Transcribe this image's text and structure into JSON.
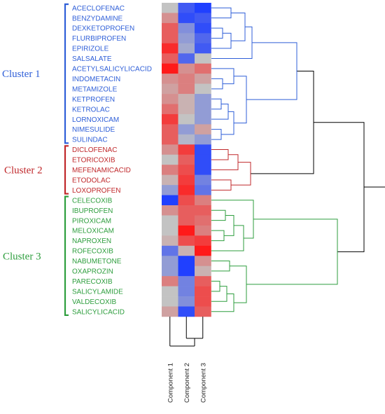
{
  "colors": {
    "cluster_1": "#2f5fd8",
    "cluster_2": "#c0282b",
    "cluster_3": "#2e9e3e",
    "heat_low": "#2040ff",
    "heat_mid": "#c3c3c3",
    "heat_high": "#ff1a1a",
    "root_link": "#000000"
  },
  "clusters": [
    {
      "label": "Cluster 1",
      "color": "#2f5fd8",
      "drugs": [
        "ACECLOFENAC",
        "BENZYDAMINE",
        "DEXKETOPROFEN",
        "FLURBIPROFEN",
        "EPIRIZOLE",
        "SALSALATE",
        "ACETYLSALICYLICACID",
        "INDOMETACIN",
        "METAMIZOLE",
        "KETPROFEN",
        "KETROLAC",
        "LORNOXICAM",
        "NIMESULIDE",
        "SULINDAC"
      ]
    },
    {
      "label": "Cluster 2",
      "color": "#c0282b",
      "drugs": [
        "DICLOFENAC",
        "ETORICOXIB",
        "MEFENAMICACID",
        "ETODOLAC",
        "LOXOPROFEN"
      ]
    },
    {
      "label": "Cluster 3",
      "color": "#2e9e3e",
      "drugs": [
        "CELECOXIB",
        "IBUPROFEN",
        "PIROXICAM",
        "MELOXICAM",
        "NAPROXEN",
        "ROFECOXIB",
        "NABUMETONE",
        "OXAPROZIN",
        "PARECOXIB",
        "SALICYLAMIDE",
        "VALDECOXIB",
        "SALICYLICACID"
      ]
    }
  ],
  "components": [
    "Component 1",
    "Component 2",
    "Component 3"
  ],
  "chart_data": {
    "type": "heatmap",
    "rows": [
      "ACECLOFENAC",
      "BENZYDAMINE",
      "DEXKETOPROFEN",
      "FLURBIPROFEN",
      "EPIRIZOLE",
      "SALSALATE",
      "ACETYLSALICYLICACID",
      "INDOMETACIN",
      "METAMIZOLE",
      "KETPROFEN",
      "KETROLAC",
      "LORNOXICAM",
      "NIMESULIDE",
      "SULINDAC",
      "DICLOFENAC",
      "ETORICOXIB",
      "MEFENAMICACID",
      "ETODOLAC",
      "LOXOPROFEN",
      "CELECOXIB",
      "IBUPROFEN",
      "PIROXICAM",
      "MELOXICAM",
      "NAPROXEN",
      "ROFECOXIB",
      "NABUMETONE",
      "OXAPROZIN",
      "PARECOXIB",
      "SALICYLAMIDE",
      "VALDECOXIB",
      "SALICYLICACID"
    ],
    "columns": [
      "Component 1",
      "Component 2",
      "Component 3"
    ],
    "values": [
      [
        0.0,
        -0.8,
        -1.0
      ],
      [
        0.3,
        -0.9,
        -0.8
      ],
      [
        0.6,
        -0.4,
        -0.9
      ],
      [
        0.6,
        -0.3,
        -0.7
      ],
      [
        0.9,
        -0.2,
        -0.8
      ],
      [
        0.6,
        -0.7,
        0.0
      ],
      [
        1.0,
        0.3,
        0.5
      ],
      [
        0.3,
        0.4,
        0.2
      ],
      [
        0.2,
        0.4,
        0.0
      ],
      [
        0.3,
        0.1,
        -0.3
      ],
      [
        0.5,
        0.1,
        -0.3
      ],
      [
        0.8,
        0.0,
        -0.3
      ],
      [
        0.6,
        -0.3,
        0.2
      ],
      [
        0.6,
        -0.1,
        -0.3
      ],
      [
        0.3,
        0.8,
        -0.9
      ],
      [
        0.0,
        0.6,
        -0.9
      ],
      [
        0.4,
        0.7,
        -0.9
      ],
      [
        0.1,
        0.8,
        -0.5
      ],
      [
        -0.3,
        0.9,
        -0.6
      ],
      [
        -1.0,
        0.7,
        0.4
      ],
      [
        0.3,
        0.6,
        0.6
      ],
      [
        0.0,
        0.6,
        0.5
      ],
      [
        0.0,
        1.0,
        0.4
      ],
      [
        0.1,
        0.7,
        0.8
      ],
      [
        -0.6,
        0.1,
        1.0
      ],
      [
        -0.3,
        -1.0,
        0.3
      ],
      [
        -0.3,
        -1.0,
        0.1
      ],
      [
        0.4,
        -0.5,
        0.6
      ],
      [
        0.0,
        -0.5,
        0.7
      ],
      [
        0.0,
        -0.4,
        0.7
      ],
      [
        0.2,
        -0.9,
        0.6
      ]
    ],
    "value_range": [
      -1,
      1
    ]
  }
}
